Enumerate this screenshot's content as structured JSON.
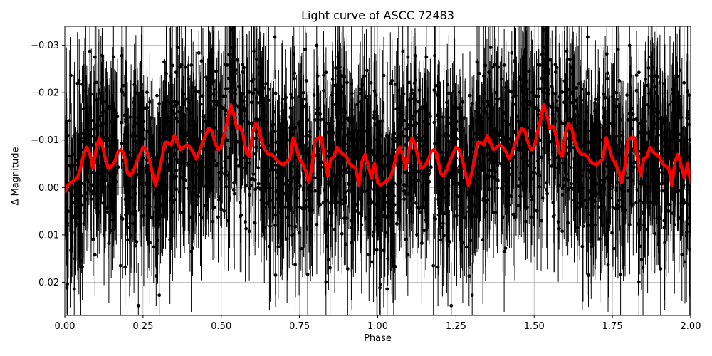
{
  "chart_data": {
    "type": "line",
    "title": "Light curve of ASCC 72483",
    "xlabel": "Phase",
    "ylabel": "Δ Magnitude",
    "xlim": [
      0.0,
      2.0
    ],
    "ylim": [
      0.027,
      -0.034
    ],
    "y_inverted": true,
    "grid": true,
    "x_ticks": [
      "0.00",
      "0.25",
      "0.50",
      "0.75",
      "1.00",
      "1.25",
      "1.50",
      "1.75",
      "2.00"
    ],
    "y_ticks": [
      "−0.03",
      "−0.02",
      "−0.01",
      "0.00",
      "0.01",
      "0.02"
    ],
    "series": [
      {
        "name": "observations",
        "style": "black points with error bars",
        "color": "#000000",
        "description": "dense scatter of photometric points spanning roughly -0.03 to 0.027 with large error bars across all phases"
      },
      {
        "name": "binned/smoothed model",
        "color": "#ff0000",
        "x": [
          0.0,
          0.01,
          0.02,
          0.03,
          0.04,
          0.05,
          0.06,
          0.07,
          0.08,
          0.09,
          0.1,
          0.11,
          0.12,
          0.13,
          0.14,
          0.15,
          0.16,
          0.17,
          0.18,
          0.19,
          0.2,
          0.21,
          0.22,
          0.23,
          0.24,
          0.25,
          0.26,
          0.27,
          0.28,
          0.29,
          0.3,
          0.31,
          0.32,
          0.33,
          0.34,
          0.35,
          0.36,
          0.37,
          0.38,
          0.39,
          0.4,
          0.41,
          0.42,
          0.43,
          0.44,
          0.45,
          0.46,
          0.47,
          0.48,
          0.49,
          0.5,
          0.51,
          0.52,
          0.53,
          0.54,
          0.55,
          0.56,
          0.57,
          0.58,
          0.59,
          0.6,
          0.61,
          0.62,
          0.63,
          0.64,
          0.65,
          0.66,
          0.67,
          0.68,
          0.69,
          0.7,
          0.71,
          0.72,
          0.73,
          0.74,
          0.75,
          0.76,
          0.77,
          0.78,
          0.79,
          0.8,
          0.81,
          0.82,
          0.83,
          0.84,
          0.85,
          0.86,
          0.87,
          0.88,
          0.89,
          0.9,
          0.91,
          0.92,
          0.93,
          0.94,
          0.95,
          0.96,
          0.97,
          0.98,
          0.99,
          1.0
        ],
        "y": [
          0.001,
          -0.0005,
          -0.001,
          -0.0015,
          -0.002,
          -0.004,
          -0.007,
          -0.0085,
          -0.007,
          -0.004,
          -0.008,
          -0.0105,
          -0.009,
          -0.006,
          -0.004,
          -0.0045,
          -0.0055,
          -0.0075,
          -0.008,
          -0.007,
          -0.003,
          -0.0025,
          -0.0035,
          -0.0055,
          -0.007,
          -0.0085,
          -0.008,
          -0.006,
          -0.003,
          -0.0005,
          -0.003,
          -0.006,
          -0.0095,
          -0.0095,
          -0.009,
          -0.011,
          -0.0095,
          -0.008,
          -0.0085,
          -0.009,
          -0.0085,
          -0.0075,
          -0.006,
          -0.0075,
          -0.0095,
          -0.011,
          -0.0125,
          -0.012,
          -0.0095,
          -0.008,
          -0.0085,
          -0.0115,
          -0.014,
          -0.0175,
          -0.0155,
          -0.0125,
          -0.013,
          -0.011,
          -0.0075,
          -0.0065,
          -0.0115,
          -0.0135,
          -0.0125,
          -0.0095,
          -0.008,
          -0.007,
          -0.007,
          -0.0065,
          -0.0055,
          -0.005,
          -0.0048,
          -0.0055,
          -0.006,
          -0.0105,
          -0.0085,
          -0.006,
          -0.005,
          -0.0035,
          -0.001,
          -0.0045,
          -0.01,
          -0.0105,
          -0.0105,
          -0.006,
          -0.0025,
          -0.006,
          -0.0065,
          -0.0085,
          -0.0075,
          -0.007,
          -0.0065,
          -0.005,
          -0.0045,
          -0.004,
          -0.0005,
          -0.0055,
          -0.007,
          -0.0045,
          -0.002,
          -0.005,
          -0.001
        ]
      }
    ],
    "note": "red model curve repeats identically over phase 1.0–2.0"
  }
}
